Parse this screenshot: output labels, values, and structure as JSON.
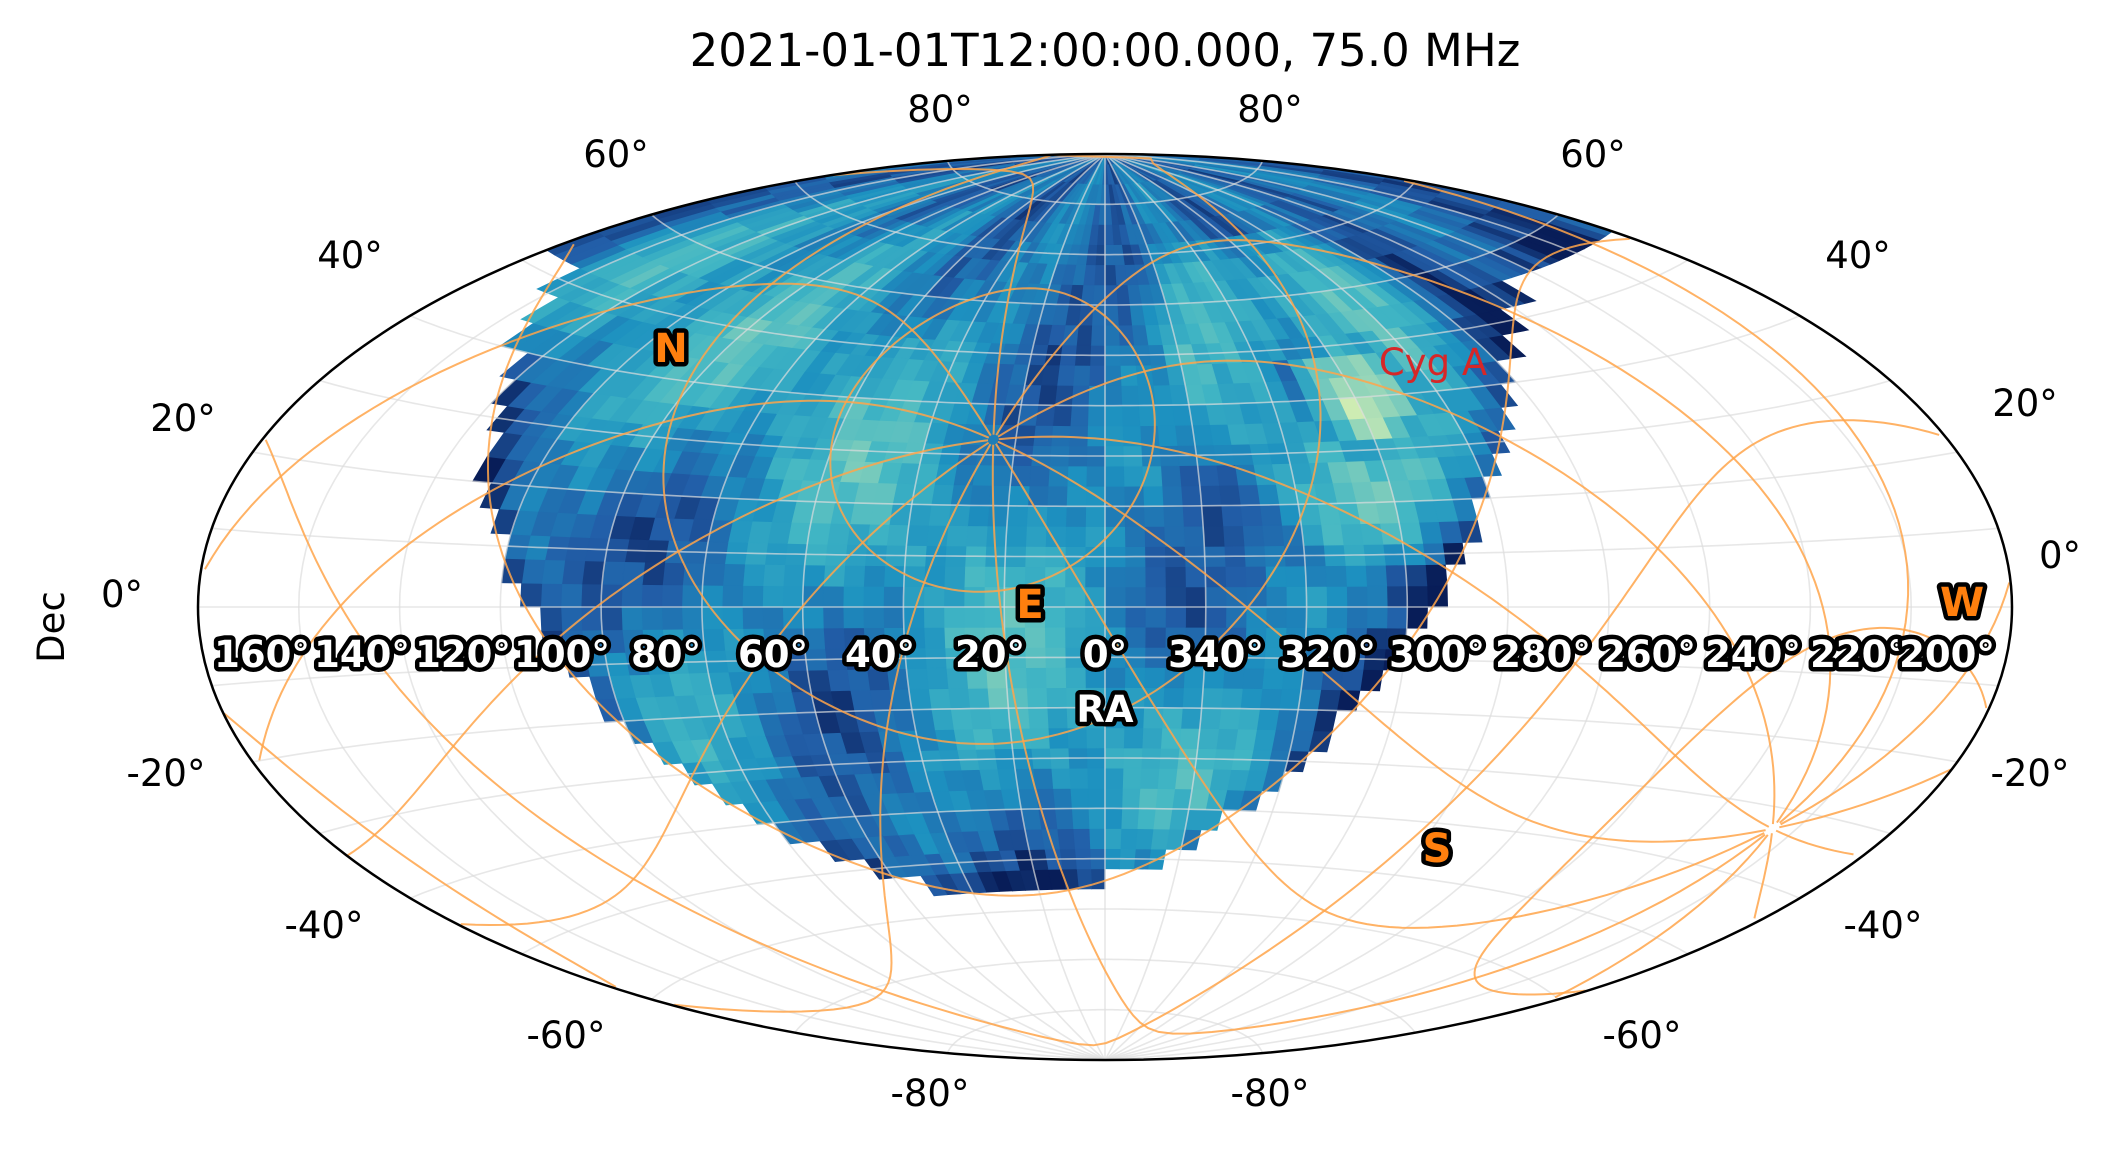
{
  "title": "2021-01-01T12:00:00.000, 75.0 MHz",
  "colors": {
    "equatorial_grid": "#dddddd",
    "horizon_grid": "#ffa44a",
    "source_label": "#d62728",
    "compass_fill": "#ff7f0e",
    "outline": "#000000"
  },
  "chart_data": {
    "type": "heatmap",
    "projection": "aitoff",
    "colormap": "YlGnBu",
    "title": "2021-01-01T12:00:00.000, 75.0 MHz",
    "ylabel": "Dec",
    "xlabel": "RA",
    "grid": true,
    "dec_tick_labels_left": [
      "80°",
      "60°",
      "40°",
      "20°",
      "0°",
      "-20°",
      "-40°",
      "-60°",
      "-80°"
    ],
    "dec_tick_labels_right": [
      "80°",
      "60°",
      "40°",
      "20°",
      "0°",
      "-20°",
      "-40°",
      "-60°",
      "-80°"
    ],
    "ra_tick_labels": [
      "160°",
      "140°",
      "120°",
      "100°",
      "80°",
      "60°",
      "40°",
      "20°",
      "0°",
      "340°",
      "320°",
      "300°",
      "280°",
      "260°",
      "240°",
      "220°",
      "200°"
    ],
    "compass": [
      "N",
      "E",
      "S",
      "W"
    ],
    "sources": [
      {
        "name": "Cyg A",
        "ra_deg": 300,
        "dec_deg": 40.7
      }
    ]
  }
}
